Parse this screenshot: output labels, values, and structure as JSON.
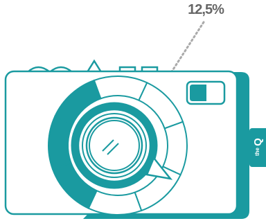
{
  "annotation": {
    "label": "12,5%"
  },
  "logo": {
    "small": "the",
    "letter": "Q"
  }
}
